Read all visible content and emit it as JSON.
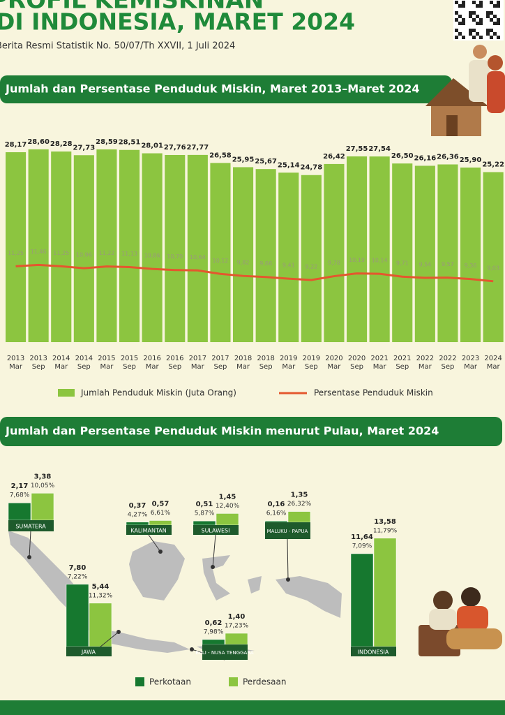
{
  "header": {
    "title_top": "PROFIL KEMISKINAN",
    "title": "DI INDONESIA, MARET 2024",
    "subtitle": "Berita Resmi Statistik No. 50/07/Th XXVII, 1 Juli 2024"
  },
  "chart_data": [
    {
      "type": "bar_line",
      "title": "Jumlah dan Persentase Penduduk Miskin, Maret 2013–Maret 2024",
      "categories": [
        "2013 Mar",
        "2013 Sep",
        "2014 Mar",
        "2014 Sep",
        "2015 Mar",
        "2015 Sep",
        "2016 Mar",
        "2016 Sep",
        "2017 Mar",
        "2017 Sep",
        "2018 Mar",
        "2018 Sep",
        "2019 Mar",
        "2019 Sep",
        "2020 Mar",
        "2020 Sep",
        "2021 Mar",
        "2021 Sep",
        "2022 Mar",
        "2022 Sep",
        "2023 Mar",
        "2024 Mar"
      ],
      "series": [
        {
          "name": "Jumlah Penduduk Miskin (Juta Orang)",
          "type": "bar",
          "color": "#8cc540",
          "values": [
            28.17,
            28.6,
            28.28,
            27.73,
            28.59,
            28.51,
            28.01,
            27.76,
            27.77,
            26.58,
            25.95,
            25.67,
            25.14,
            24.78,
            26.42,
            27.55,
            27.54,
            26.5,
            26.16,
            26.36,
            25.9,
            25.22
          ],
          "value_labels": [
            "28,17",
            "28,60",
            "28,28",
            "27,73",
            "28,59",
            "28,51",
            "28,01",
            "27,76",
            "27,77",
            "26,58",
            "25,95",
            "25,67",
            "25,14",
            "24,78",
            "26,42",
            "27,55",
            "27,54",
            "26,50",
            "26,16",
            "26,36",
            "25,90",
            "25,22"
          ]
        },
        {
          "name": "Persentase Penduduk Miskin",
          "type": "line",
          "color": "#e4572e",
          "values": [
            11.25,
            11.46,
            11.25,
            10.96,
            11.22,
            11.13,
            10.86,
            10.7,
            10.64,
            10.12,
            9.82,
            9.66,
            9.41,
            9.22,
            9.78,
            10.19,
            10.14,
            9.71,
            9.54,
            9.57,
            9.36,
            9.03
          ],
          "value_labels": [
            "11,25",
            "11,46",
            "11,25",
            "10,96",
            "11,22",
            "11,13",
            "10,86",
            "10,70",
            "10,64",
            "10,12",
            "9,82",
            "9,66",
            "9,41",
            "9,22",
            "9,78",
            "10,19",
            "10,14",
            "9,71",
            "9,54",
            "9,57",
            "9,36",
            "9,03"
          ]
        }
      ],
      "ylim": [
        0,
        29
      ]
    },
    {
      "type": "grouped_bar",
      "title": "Jumlah dan Persentase Penduduk Miskin menurut Pulau, Maret 2024",
      "categories": [
        "SUMATERA",
        "KALIMANTAN",
        "SULAWESI",
        "MALUKU - PAPUA",
        "JAWA",
        "BALI - NUSA TENGGARA",
        "INDONESIA"
      ],
      "series": [
        {
          "name": "Perkotaan",
          "color": "#16782f",
          "values": [
            2.17,
            0.37,
            0.51,
            0.16,
            7.8,
            0.62,
            11.64
          ],
          "value_labels": [
            "2,17",
            "0,37",
            "0,51",
            "0,16",
            "7,80",
            "0,62",
            "11,64"
          ],
          "percent_values": [
            7.68,
            4.27,
            5.87,
            6.16,
            7.22,
            7.98,
            7.09
          ],
          "percent_labels": [
            "7,68%",
            "4,27%",
            "5,87%",
            "6,16%",
            "7,22%",
            "7,98%",
            "7,09%"
          ]
        },
        {
          "name": "Perdesaan",
          "color": "#8cc540",
          "values": [
            3.38,
            0.57,
            1.45,
            1.35,
            5.44,
            1.4,
            13.58
          ],
          "value_labels": [
            "3,38",
            "0,57",
            "1,45",
            "1,35",
            "5,44",
            "1,40",
            "13,58"
          ],
          "percent_values": [
            10.05,
            6.61,
            12.4,
            26.32,
            11.32,
            17.23,
            11.79
          ],
          "percent_labels": [
            "10,05%",
            "6,61%",
            "12,40%",
            "26,32%",
            "11,32%",
            "17,23%",
            "11,79%"
          ]
        }
      ],
      "ylim": [
        0,
        14
      ]
    }
  ]
}
